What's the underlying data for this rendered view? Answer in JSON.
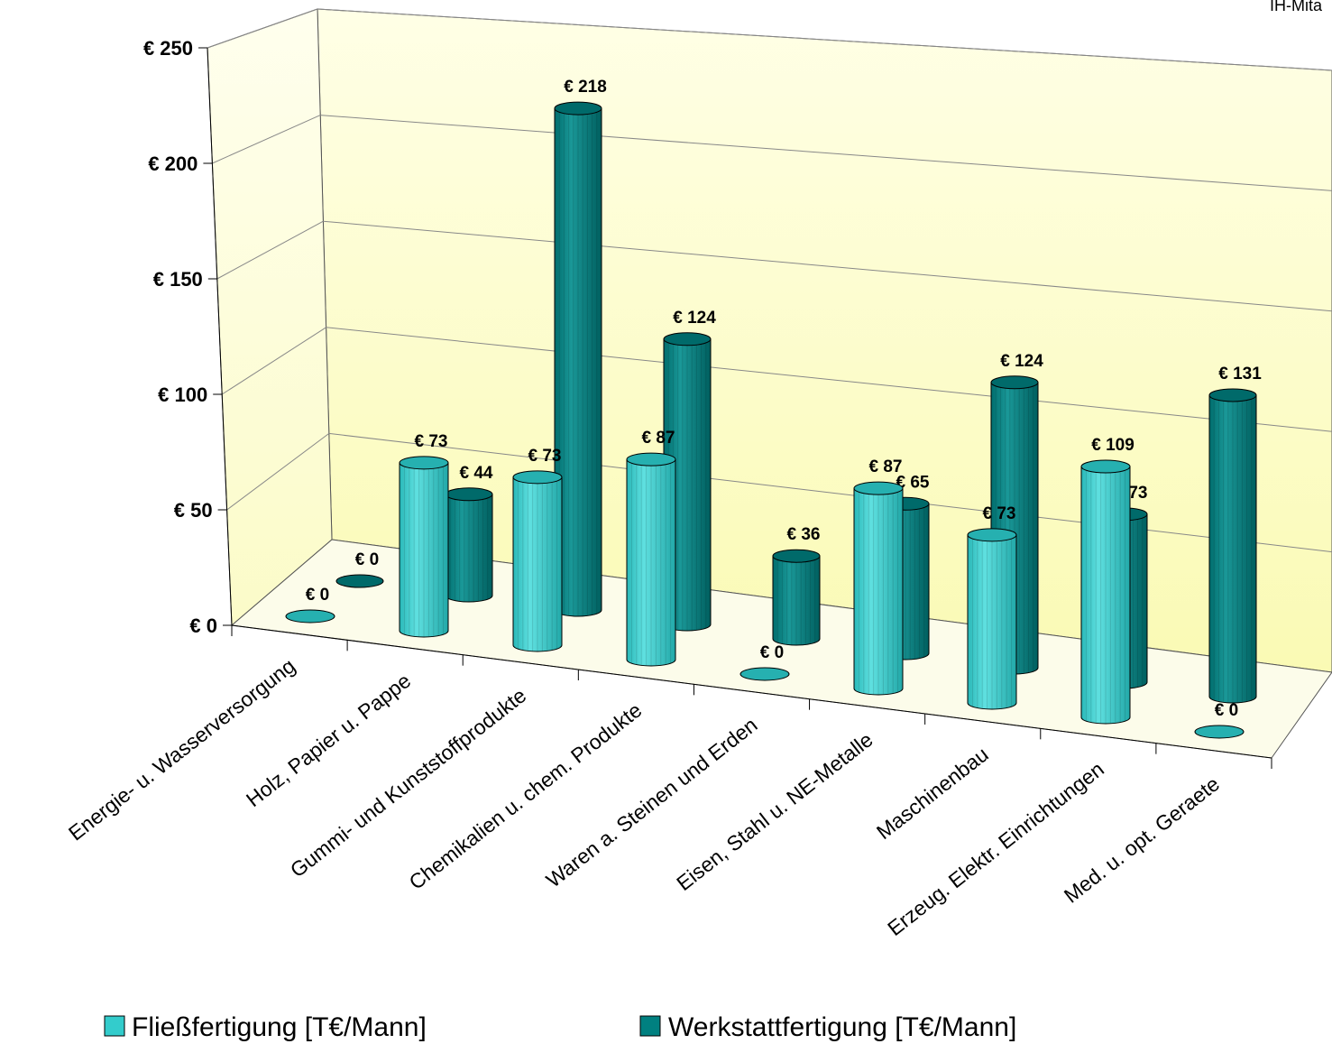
{
  "corner_label": "IH-Mita",
  "chart_data": {
    "type": "bar",
    "title": "",
    "xlabel": "",
    "ylabel": "",
    "ylim": [
      0,
      250
    ],
    "yticks": [
      0,
      50,
      100,
      150,
      200,
      250
    ],
    "ytick_labels": [
      "€ 0",
      "€ 50",
      "€ 100",
      "€ 150",
      "€ 200",
      "€ 250"
    ],
    "categories": [
      "Energie- u. Wasserversorgung",
      "Holz, Papier u. Pappe",
      "Gummi- und Kunststoffprodukte",
      "Chemikalien u. chem. Produkte",
      "Waren a. Steinen und Erden",
      "Eisen, Stahl u. NE-Metalle",
      "Maschinenbau",
      "Erzeug. Elektr. Einrichtungen",
      "Med. u. opt. Geraete"
    ],
    "series": [
      {
        "name": "Fließfertigung [T€/Mann]",
        "values": [
          0,
          73,
          73,
          87,
          0,
          87,
          73,
          109,
          0
        ],
        "labels": [
          "€ 0",
          "€ 73",
          "€ 73",
          "€ 87",
          "€ 0",
          "€ 87",
          "€ 73",
          "€ 109",
          "€ 0"
        ],
        "color": "#33CCCC"
      },
      {
        "name": "Werkstattfertigung [T€/Mann]",
        "values": [
          0,
          44,
          218,
          124,
          36,
          65,
          124,
          73,
          131
        ],
        "labels": [
          "€ 0",
          "€ 44",
          "€ 218",
          "€ 124",
          "€ 36",
          "€ 65",
          "€ 124",
          "€ 73",
          "€ 131"
        ],
        "color": "#008080"
      }
    ],
    "legend_position": "bottom",
    "grid": true,
    "style": "3d-cylinder"
  }
}
